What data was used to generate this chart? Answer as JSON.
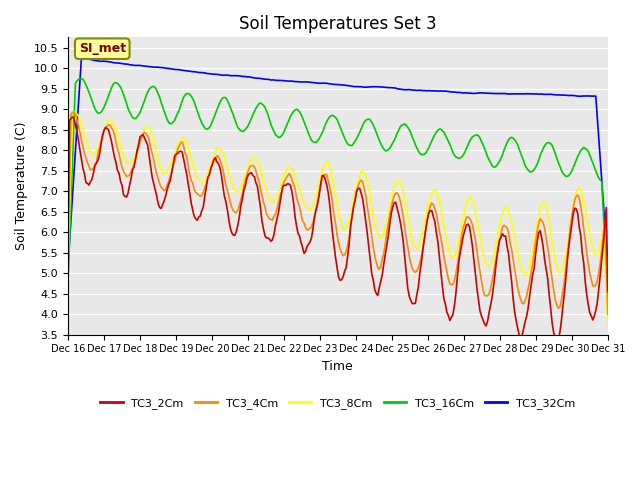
{
  "title": "Soil Temperatures Set 3",
  "xlabel": "Time",
  "ylabel": "Soil Temperature (C)",
  "ylim": [
    3.5,
    10.75
  ],
  "yticks": [
    3.5,
    4.0,
    4.5,
    5.0,
    5.5,
    6.0,
    6.5,
    7.0,
    7.5,
    8.0,
    8.5,
    9.0,
    9.5,
    10.0,
    10.5
  ],
  "xtick_labels": [
    "Dec 16",
    "Dec 17",
    "Dec 18",
    "Dec 19",
    "Dec 20",
    "Dec 21",
    "Dec 22",
    "Dec 23",
    "Dec 24",
    "Dec 25",
    "Dec 26",
    "Dec 27",
    "Dec 28",
    "Dec 29",
    "Dec 30",
    "Dec 31"
  ],
  "colors": {
    "TC3_2Cm": "#cc0000",
    "TC3_4Cm": "#ff8800",
    "TC3_8Cm": "#ffff00",
    "TC3_16Cm": "#00cc00",
    "TC3_32Cm": "#0000ff"
  },
  "legend_labels": [
    "TC3_2Cm",
    "TC3_4Cm",
    "TC3_8Cm",
    "TC3_16Cm",
    "TC3_32Cm"
  ],
  "plot_bg_color": "#e8e8e8",
  "annotation_text": "SI_met",
  "annotation_bg": "#ffff99",
  "annotation_border": "#888800"
}
